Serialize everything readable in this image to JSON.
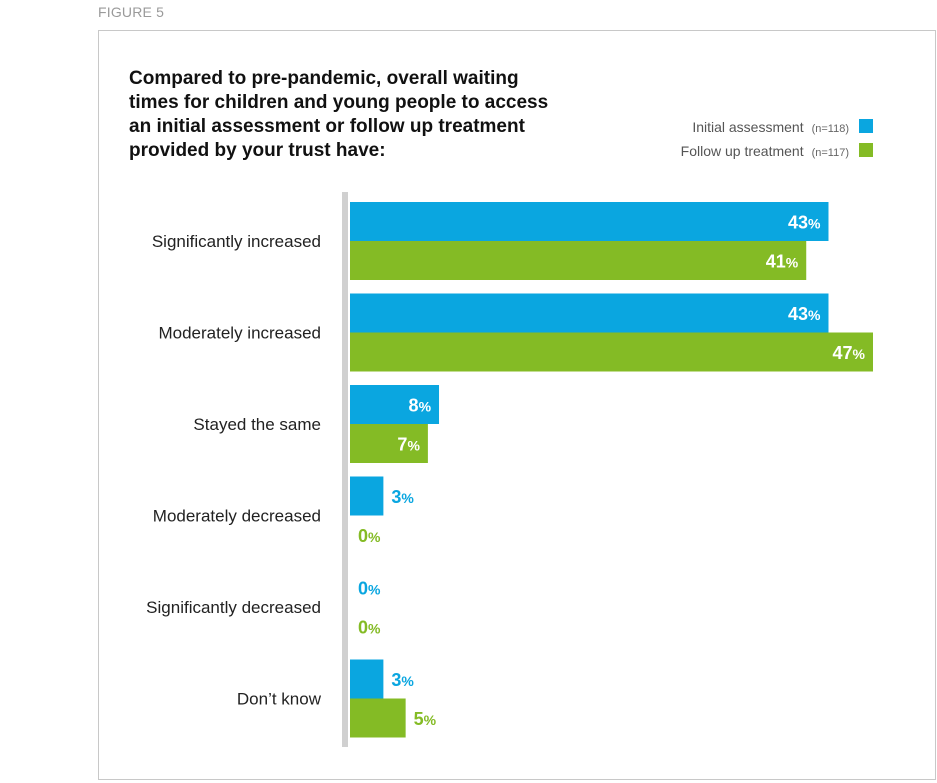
{
  "figure_label": "FIGURE 5",
  "chart_data": {
    "type": "bar",
    "orientation": "horizontal",
    "title_lines": [
      "Compared to pre-pandemic, overall waiting",
      "times for children and young people to access",
      "an initial assessment or follow up treatment",
      "provided by your trust have:"
    ],
    "categories": [
      "Significantly increased",
      "Moderately increased",
      "Stayed the same",
      "Moderately decreased",
      "Significantly decreased",
      "Don’t know"
    ],
    "series": [
      {
        "name": "Initial assessment",
        "n_label": "(n=118)",
        "color": "#0aa6e0",
        "values": [
          43,
          43,
          8,
          3,
          0,
          3
        ]
      },
      {
        "name": "Follow up treatment",
        "n_label": "(n=117)",
        "color": "#84bb25",
        "values": [
          41,
          47,
          7,
          0,
          0,
          5
        ]
      }
    ],
    "value_suffix": "%",
    "xlim": [
      0,
      47
    ],
    "legend_position": "top-right",
    "grid": false,
    "axis_color": "#d0d0d0"
  }
}
